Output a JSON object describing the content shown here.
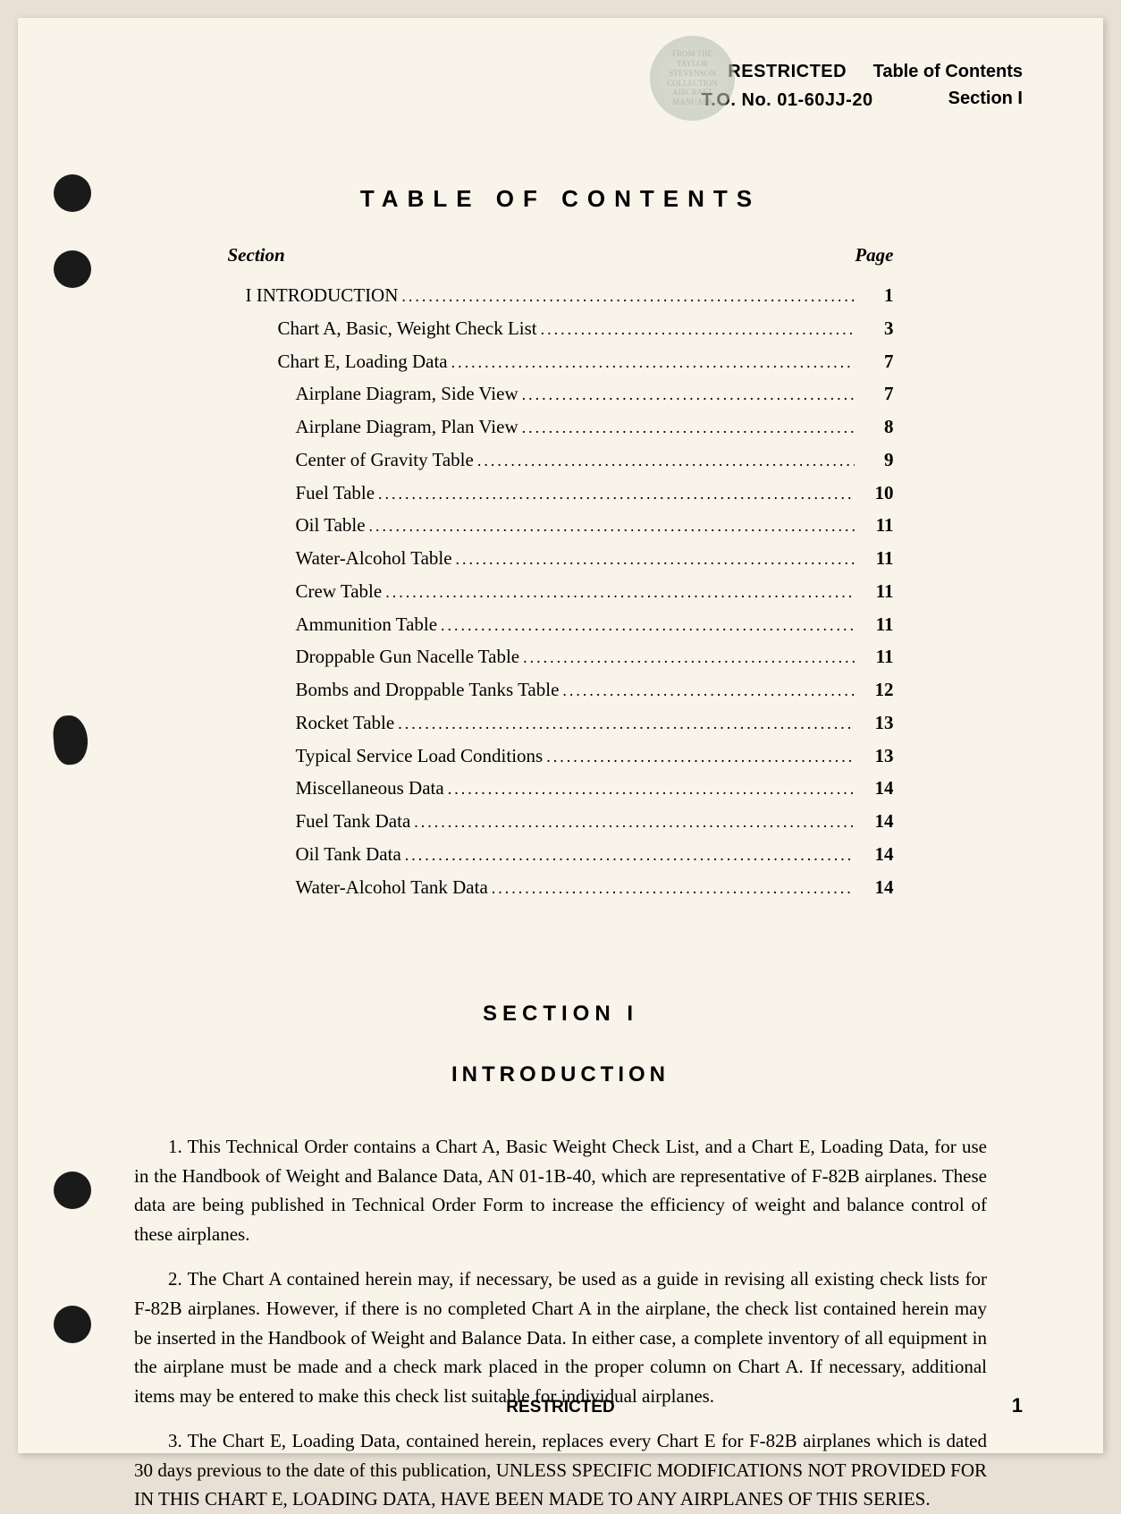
{
  "header": {
    "restricted": "RESTRICTED",
    "to_number": "T.O. No. 01-60JJ-20",
    "right_line1": "Table of Contents",
    "right_line2": "Section I",
    "stamp_line1": "FROM THE",
    "stamp_line2": "TAYLOR",
    "stamp_line3": "STEVENSON",
    "stamp_line4": "COLLECTION",
    "stamp_line5": "AIRCRAFT",
    "stamp_line6": "MANUALS"
  },
  "toc": {
    "title": "TABLE OF CONTENTS",
    "col_section": "Section",
    "col_page": "Page",
    "entries": [
      {
        "label": "I  INTRODUCTION",
        "page": "1",
        "indent": 0
      },
      {
        "label": "Chart A, Basic, Weight Check List",
        "page": "3",
        "indent": 1
      },
      {
        "label": "Chart E, Loading Data",
        "page": "7",
        "indent": 1
      },
      {
        "label": "Airplane Diagram, Side View",
        "page": "7",
        "indent": 2
      },
      {
        "label": "Airplane Diagram, Plan View",
        "page": "8",
        "indent": 2
      },
      {
        "label": "Center of Gravity Table",
        "page": "9",
        "indent": 2
      },
      {
        "label": "Fuel Table",
        "page": "10",
        "indent": 2
      },
      {
        "label": "Oil Table",
        "page": "11",
        "indent": 2
      },
      {
        "label": "Water-Alcohol Table",
        "page": "11",
        "indent": 2
      },
      {
        "label": "Crew Table",
        "page": "11",
        "indent": 2
      },
      {
        "label": "Ammunition Table",
        "page": "11",
        "indent": 2
      },
      {
        "label": "Droppable Gun Nacelle Table",
        "page": "11",
        "indent": 2
      },
      {
        "label": "Bombs and Droppable Tanks Table",
        "page": "12",
        "indent": 2
      },
      {
        "label": "Rocket Table",
        "page": "13",
        "indent": 2
      },
      {
        "label": "Typical Service Load Conditions",
        "page": "13",
        "indent": 2
      },
      {
        "label": "Miscellaneous Data",
        "page": "14",
        "indent": 2
      },
      {
        "label": "Fuel Tank Data",
        "page": "14",
        "indent": 2
      },
      {
        "label": "Oil Tank Data",
        "page": "14",
        "indent": 2
      },
      {
        "label": "Water-Alcohol Tank Data",
        "page": "14",
        "indent": 2
      }
    ]
  },
  "section": {
    "title": "SECTION I",
    "subtitle": "INTRODUCTION",
    "paragraphs": [
      "1. This Technical Order contains a Chart A, Basic Weight Check List, and a Chart E, Loading Data, for use in the Handbook of Weight and Balance Data, AN 01-1B-40, which are representative of F-82B airplanes. These data are being published in Technical Order Form to increase the efficiency of weight and balance control of these airplanes.",
      "2. The Chart A contained herein may, if necessary, be used as a guide in revising all existing check lists for F-82B airplanes. However, if there is no completed Chart A in the airplane, the check list contained herein may be inserted in the Handbook of Weight and Balance Data. In either case, a complete inventory of all equipment in the airplane must be made and a check mark placed in the proper column on Chart A. If necessary, additional items may be entered to make this check list suitable for individual airplanes.",
      "3. The Chart E, Loading Data, contained herein, replaces every Chart E for F-82B airplanes which is dated 30 days previous to the date of this publication, UNLESS SPECIFIC MODIFICATIONS NOT PROVIDED FOR IN THIS CHART E, LOADING DATA, HAVE BEEN MADE TO ANY AIRPLANES OF THIS SERIES."
    ]
  },
  "footer": {
    "restricted": "RESTRICTED",
    "page_number": "1"
  }
}
